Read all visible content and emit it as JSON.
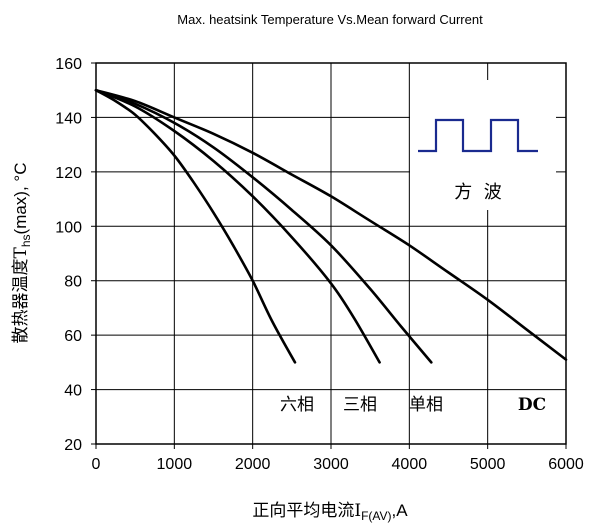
{
  "chart_data": {
    "type": "line",
    "title": "Max. heatsink Temperature Vs.Mean forward Current",
    "xlabel": {
      "main": "正向平均电流I",
      "sub": "F(AV)",
      "unit": ",A"
    },
    "ylabel": {
      "main": "散热器温度T",
      "sub": "hs",
      "unit": "(max), °C"
    },
    "xlim": [
      0,
      6000
    ],
    "ylim": [
      20,
      160
    ],
    "x_ticks": [
      "0",
      "1000",
      "2000",
      "3000",
      "4000",
      "5000",
      "6000"
    ],
    "y_ticks": [
      "20",
      "40",
      "60",
      "80",
      "100",
      "120",
      "140",
      "160"
    ],
    "grid": true,
    "series": [
      {
        "name": "六相",
        "x": [
          0,
          250,
          500,
          750,
          1000,
          1250,
          1500,
          1750,
          2000,
          2250,
          2540
        ],
        "y": [
          150,
          146,
          141,
          134,
          126,
          116,
          105,
          93,
          80,
          65,
          50
        ]
      },
      {
        "name": "三相",
        "x": [
          0,
          500,
          1000,
          1500,
          2000,
          2500,
          3000,
          3300,
          3620
        ],
        "y": [
          150,
          144,
          135,
          124,
          111,
          96,
          79,
          66,
          50
        ]
      },
      {
        "name": "单相",
        "x": [
          0,
          500,
          1000,
          1500,
          2000,
          2500,
          3000,
          3500,
          3900,
          4280
        ],
        "y": [
          150,
          145,
          138,
          129,
          118,
          106,
          93,
          77,
          63,
          50
        ]
      },
      {
        "name": "DC",
        "x": [
          0,
          500,
          1000,
          1500,
          2000,
          2500,
          3000,
          3500,
          4000,
          4500,
          5000,
          5500,
          6000
        ],
        "y": [
          150,
          146,
          140,
          134,
          127,
          119,
          111,
          102,
          93,
          83,
          73,
          62,
          51
        ]
      }
    ],
    "annotations": [
      "六相",
      "三相",
      "单相",
      "DC"
    ],
    "inset": {
      "label": "方  波",
      "waveform": "square-wave-icon"
    },
    "colors": {
      "lines": "#000000",
      "grid": "#000000",
      "waveform": "#1a2a8f"
    }
  }
}
